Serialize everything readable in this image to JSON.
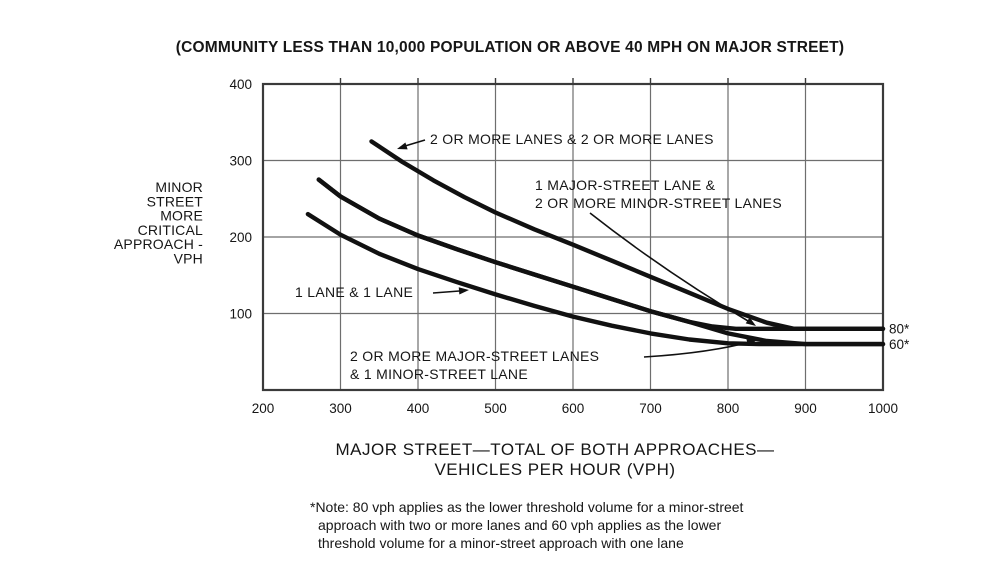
{
  "title": "(COMMUNITY LESS THAN 10,000 POPULATION OR ABOVE 40 MPH ON MAJOR STREET)",
  "y_axis": {
    "label_lines": [
      "MINOR",
      "STREET",
      "MORE",
      "CRITICAL",
      "APPROACH -",
      "VPH"
    ],
    "ticks": [
      "400",
      "300",
      "200",
      "100"
    ]
  },
  "x_axis": {
    "ticks": [
      "200",
      "300",
      "400",
      "500",
      "600",
      "700",
      "800",
      "900",
      "1000"
    ],
    "title_lines": [
      "MAJOR STREET—TOTAL OF BOTH APPROACHES—",
      "VEHICLES PER HOUR (VPH)"
    ]
  },
  "threshold_labels": {
    "eighty": "80*",
    "sixty": "60*"
  },
  "curve_labels": {
    "l1": "2 OR MORE LANES & 2 OR MORE LANES",
    "l2a": "1 MAJOR-STREET LANE &",
    "l2b": "2 OR MORE MINOR-STREET LANES",
    "l3": "1 LANE & 1 LANE",
    "l4a": "2 OR MORE MAJOR-STREET LANES",
    "l4b": "& 1 MINOR-STREET LANE"
  },
  "note_lines": [
    "*Note: 80 vph applies as the lower threshold volume for a minor-street",
    "approach with two or more lanes and 60 vph applies as the lower",
    "threshold volume for a minor-street approach with one lane"
  ],
  "chart_data": {
    "type": "line",
    "title": "(COMMUNITY LESS THAN 10,000 POPULATION OR ABOVE 40 MPH ON MAJOR STREET)",
    "xlabel": "MAJOR STREET—TOTAL OF BOTH APPROACHES—VEHICLES PER HOUR (VPH)",
    "ylabel": "MINOR STREET MORE CRITICAL APPROACH - VPH",
    "xlim": [
      200,
      1000
    ],
    "ylim": [
      0,
      400
    ],
    "x_tick_step": 100,
    "y_tick_step": 100,
    "grid": true,
    "lower_thresholds": {
      "two_or_more_minor_street_lanes_vph": 80,
      "one_minor_street_lane_vph": 60
    },
    "note": "80 vph applies as the lower threshold volume for a minor-street approach with two or more lanes and 60 vph applies as the lower threshold volume for a minor-street approach with one lane",
    "series": [
      {
        "name": "2 OR MORE LANES & 2 OR MORE LANES",
        "ends_at_threshold": 80,
        "points": [
          [
            340,
            325
          ],
          [
            380,
            298
          ],
          [
            420,
            274
          ],
          [
            460,
            252
          ],
          [
            500,
            232
          ],
          [
            550,
            210
          ],
          [
            600,
            190
          ],
          [
            650,
            169
          ],
          [
            700,
            148
          ],
          [
            750,
            127
          ],
          [
            800,
            106
          ],
          [
            850,
            88
          ],
          [
            885,
            80
          ],
          [
            1000,
            80
          ]
        ]
      },
      {
        "name": "1 MAJOR-STREET LANE & 2 OR MORE MINOR-STREET LANES",
        "ends_at_threshold": 80,
        "points": [
          [
            272,
            275
          ],
          [
            300,
            253
          ],
          [
            350,
            224
          ],
          [
            400,
            202
          ],
          [
            450,
            184
          ],
          [
            500,
            167
          ],
          [
            550,
            151
          ],
          [
            600,
            135
          ],
          [
            650,
            119
          ],
          [
            700,
            103
          ],
          [
            750,
            89
          ],
          [
            780,
            83
          ],
          [
            810,
            80
          ],
          [
            1000,
            80
          ]
        ]
      },
      {
        "name": "2 OR MORE MAJOR-STREET LANES & 1 MINOR-STREET LANE",
        "ends_at_threshold": 60,
        "points": [
          [
            272,
            275
          ],
          [
            300,
            253
          ],
          [
            350,
            224
          ],
          [
            400,
            202
          ],
          [
            450,
            184
          ],
          [
            500,
            167
          ],
          [
            550,
            151
          ],
          [
            600,
            135
          ],
          [
            650,
            119
          ],
          [
            700,
            103
          ],
          [
            750,
            89
          ],
          [
            800,
            74
          ],
          [
            850,
            64
          ],
          [
            900,
            60
          ],
          [
            1000,
            60
          ]
        ]
      },
      {
        "name": "1 LANE & 1 LANE",
        "ends_at_threshold": 60,
        "points": [
          [
            258,
            230
          ],
          [
            300,
            203
          ],
          [
            350,
            178
          ],
          [
            400,
            158
          ],
          [
            450,
            141
          ],
          [
            500,
            125
          ],
          [
            550,
            110
          ],
          [
            600,
            96
          ],
          [
            650,
            84
          ],
          [
            700,
            74
          ],
          [
            750,
            66
          ],
          [
            800,
            61
          ],
          [
            840,
            60
          ],
          [
            1000,
            60
          ]
        ]
      }
    ]
  }
}
